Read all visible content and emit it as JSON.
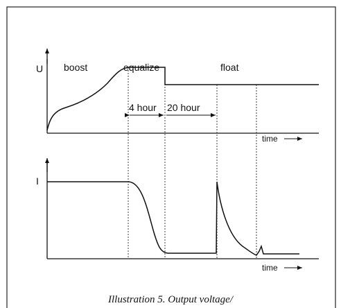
{
  "voltage_graph": {
    "axis_label": "U",
    "phases": [
      "boost",
      "equalize",
      "float"
    ],
    "durations": [
      "4 hour",
      "20 hour"
    ],
    "time_label": "time"
  },
  "current_graph": {
    "axis_label": "I",
    "time_label": "time"
  },
  "caption": "Illustration 5. Output voltage/"
}
